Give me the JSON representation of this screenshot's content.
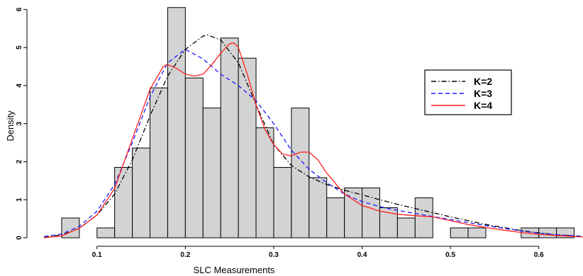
{
  "chart_data": {
    "type": "histogram",
    "xlabel": "SLC Measurements",
    "ylabel": "Density",
    "xlim": [
      0.04,
      0.65
    ],
    "ylim": [
      0,
      6.1
    ],
    "x_ticks": [
      0.1,
      0.2,
      0.3,
      0.4,
      0.5,
      0.6
    ],
    "x_tick_labels": [
      "0.1",
      "0.2",
      "0.3",
      "0.4",
      "0.5",
      "0.6"
    ],
    "y_ticks": [
      0,
      1,
      2,
      3,
      4,
      5,
      6
    ],
    "y_tick_labels": [
      "0",
      "1",
      "2",
      "3",
      "4",
      "5",
      "6"
    ],
    "grid": false,
    "legend_position": "right",
    "bar_color": "#d3d3d3",
    "bar_edge_color": "#000000",
    "histogram": {
      "bin_width": 0.02,
      "bin_starts": [
        0.06,
        0.08,
        0.1,
        0.12,
        0.14,
        0.16,
        0.18,
        0.2,
        0.22,
        0.24,
        0.26,
        0.28,
        0.3,
        0.32,
        0.34,
        0.36,
        0.38,
        0.4,
        0.42,
        0.44,
        0.46,
        0.48,
        0.5,
        0.52,
        0.54,
        0.56,
        0.58,
        0.6,
        0.62
      ],
      "density": [
        0.52,
        0.0,
        0.26,
        1.85,
        2.36,
        3.94,
        6.05,
        4.2,
        3.41,
        5.25,
        4.72,
        2.89,
        1.85,
        3.41,
        1.58,
        1.05,
        1.31,
        1.31,
        0.79,
        0.52,
        1.05,
        0.0,
        0.26,
        0.26,
        0.0,
        0.0,
        0.26,
        0.26,
        0.26
      ]
    },
    "series": [
      {
        "name": "K=2",
        "color": "#000000",
        "dash": "dash-dot",
        "x": [
          0.04,
          0.06,
          0.08,
          0.1,
          0.12,
          0.14,
          0.16,
          0.18,
          0.2,
          0.22,
          0.225,
          0.24,
          0.26,
          0.28,
          0.3,
          0.32,
          0.34,
          0.36,
          0.38,
          0.4,
          0.42,
          0.44,
          0.46,
          0.48,
          0.5,
          0.52,
          0.54,
          0.56,
          0.58,
          0.6,
          0.62,
          0.65
        ],
        "y": [
          0.02,
          0.07,
          0.25,
          0.6,
          1.15,
          2.05,
          3.2,
          4.25,
          4.95,
          5.3,
          5.33,
          5.2,
          4.6,
          3.5,
          2.45,
          1.9,
          1.6,
          1.4,
          1.25,
          1.13,
          1.0,
          0.88,
          0.77,
          0.66,
          0.55,
          0.45,
          0.35,
          0.27,
          0.19,
          0.13,
          0.08,
          0.03
        ]
      },
      {
        "name": "K=3",
        "color": "#1a1aff",
        "dash": "dashed",
        "x": [
          0.04,
          0.06,
          0.08,
          0.1,
          0.12,
          0.14,
          0.16,
          0.18,
          0.2,
          0.22,
          0.24,
          0.26,
          0.28,
          0.3,
          0.32,
          0.34,
          0.36,
          0.38,
          0.4,
          0.42,
          0.44,
          0.46,
          0.48,
          0.5,
          0.52,
          0.54,
          0.56,
          0.58,
          0.6,
          0.62,
          0.65
        ],
        "y": [
          0.03,
          0.1,
          0.3,
          0.7,
          1.4,
          2.5,
          3.7,
          4.6,
          4.95,
          4.7,
          4.3,
          4.0,
          3.6,
          3.0,
          2.3,
          1.8,
          1.45,
          1.15,
          0.95,
          0.82,
          0.72,
          0.64,
          0.56,
          0.48,
          0.4,
          0.32,
          0.25,
          0.18,
          0.12,
          0.08,
          0.04
        ]
      },
      {
        "name": "K=4",
        "color": "#ff2020",
        "dash": "solid",
        "x": [
          0.04,
          0.06,
          0.08,
          0.1,
          0.12,
          0.14,
          0.16,
          0.175,
          0.18,
          0.19,
          0.2,
          0.21,
          0.22,
          0.23,
          0.24,
          0.25,
          0.255,
          0.26,
          0.27,
          0.28,
          0.29,
          0.3,
          0.31,
          0.32,
          0.33,
          0.34,
          0.35,
          0.36,
          0.38,
          0.4,
          0.42,
          0.44,
          0.46,
          0.48,
          0.5,
          0.52,
          0.54,
          0.56,
          0.58,
          0.6,
          0.62,
          0.65
        ],
        "y": [
          0.0,
          0.05,
          0.25,
          0.6,
          1.3,
          2.6,
          3.9,
          4.5,
          4.55,
          4.45,
          4.3,
          4.25,
          4.3,
          4.55,
          4.85,
          5.1,
          5.12,
          5.0,
          4.3,
          3.5,
          2.85,
          2.45,
          2.2,
          2.15,
          2.25,
          2.25,
          2.05,
          1.7,
          1.15,
          0.85,
          0.7,
          0.62,
          0.58,
          0.55,
          0.45,
          0.35,
          0.27,
          0.2,
          0.14,
          0.09,
          0.06,
          0.02
        ]
      }
    ]
  }
}
